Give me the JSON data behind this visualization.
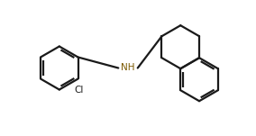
{
  "bg": "#ffffff",
  "bond_color": "#1a1a1a",
  "nh_color": "#7B5800",
  "cl_color": "#1a1a1a",
  "lw": 1.6,
  "dbl_off": 0.09,
  "dbl_sh": 0.12,
  "R": 0.85,
  "xlim": [
    0,
    10
  ],
  "ylim": [
    0,
    5.3
  ]
}
